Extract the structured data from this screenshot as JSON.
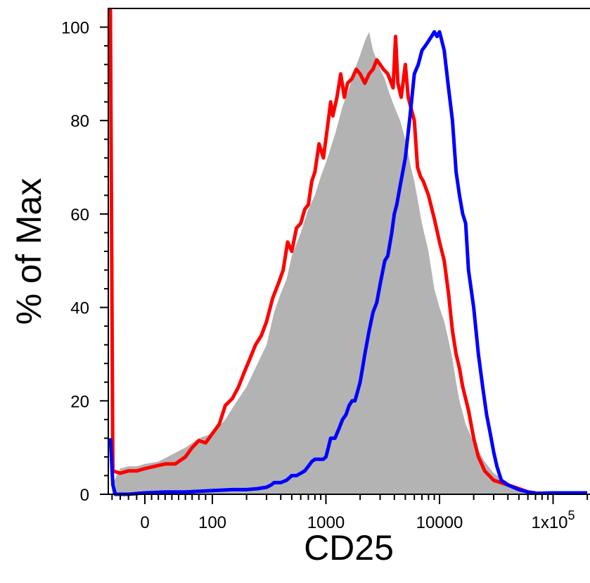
{
  "chart_data": {
    "type": "area",
    "title": "",
    "xlabel": "CD25",
    "ylabel": "% of Max",
    "x_scale": "biexponential",
    "ylim": [
      0,
      104
    ],
    "x_ticks": [
      {
        "value": 0,
        "label": "0"
      },
      {
        "value": 100,
        "label": "100"
      },
      {
        "value": 1000,
        "label": "1000"
      },
      {
        "value": 10000,
        "label": "10000"
      },
      {
        "value": 100000,
        "label": "1x10",
        "superscript": "5"
      }
    ],
    "y_ticks": [
      {
        "value": 0,
        "label": "0"
      },
      {
        "value": 20,
        "label": "20"
      },
      {
        "value": 40,
        "label": "40"
      },
      {
        "value": 60,
        "label": "60"
      },
      {
        "value": 80,
        "label": "80"
      },
      {
        "value": 100,
        "label": "100"
      }
    ],
    "grid": false,
    "legend": "none",
    "series": [
      {
        "style": "filled",
        "color": "#b3b3b3",
        "points": [
          [
            -40,
            2
          ],
          [
            -30,
            5.5
          ],
          [
            -20,
            6
          ],
          [
            -10,
            6
          ],
          [
            0,
            6.5
          ],
          [
            20,
            7
          ],
          [
            40,
            8.5
          ],
          [
            60,
            10
          ],
          [
            80,
            12
          ],
          [
            100,
            13
          ],
          [
            130,
            16
          ],
          [
            160,
            19.5
          ],
          [
            200,
            23
          ],
          [
            250,
            28
          ],
          [
            300,
            32
          ],
          [
            350,
            39
          ],
          [
            400,
            43
          ],
          [
            450,
            46
          ],
          [
            500,
            51
          ],
          [
            600,
            56
          ],
          [
            700,
            61
          ],
          [
            800,
            64
          ],
          [
            900,
            68
          ],
          [
            1000,
            71
          ],
          [
            1200,
            77
          ],
          [
            1400,
            83
          ],
          [
            1600,
            87
          ],
          [
            1800,
            91
          ],
          [
            2000,
            94
          ],
          [
            2200,
            97
          ],
          [
            2400,
            99
          ],
          [
            2600,
            95
          ],
          [
            2800,
            93
          ],
          [
            3000,
            91
          ],
          [
            3300,
            89
          ],
          [
            3600,
            86
          ],
          [
            4000,
            83
          ],
          [
            4500,
            80
          ],
          [
            5000,
            76
          ],
          [
            5600,
            70
          ],
          [
            6000,
            67
          ],
          [
            7000,
            58
          ],
          [
            8000,
            52
          ],
          [
            9000,
            44
          ],
          [
            10000,
            40
          ],
          [
            11000,
            37
          ],
          [
            12000,
            33
          ],
          [
            13000,
            29
          ],
          [
            14000,
            24
          ],
          [
            15000,
            20
          ],
          [
            17000,
            15
          ],
          [
            20000,
            11
          ],
          [
            25000,
            7
          ],
          [
            30000,
            4.5
          ],
          [
            40000,
            2.5
          ],
          [
            50000,
            1.2
          ],
          [
            60000,
            0.5
          ],
          [
            70000,
            0
          ]
        ]
      },
      {
        "style": "line",
        "color": "#ff0000",
        "points": [
          [
            -42,
            104
          ],
          [
            -39,
            5
          ],
          [
            -30,
            4.5
          ],
          [
            -20,
            5
          ],
          [
            -10,
            5
          ],
          [
            0,
            5.5
          ],
          [
            15,
            6
          ],
          [
            30,
            6.5
          ],
          [
            45,
            6.5
          ],
          [
            60,
            8
          ],
          [
            70,
            10
          ],
          [
            80,
            11.5
          ],
          [
            90,
            11
          ],
          [
            100,
            13
          ],
          [
            115,
            15
          ],
          [
            130,
            19
          ],
          [
            150,
            20.5
          ],
          [
            170,
            23
          ],
          [
            190,
            26
          ],
          [
            210,
            28.5
          ],
          [
            240,
            32
          ],
          [
            270,
            34
          ],
          [
            300,
            37
          ],
          [
            340,
            42
          ],
          [
            380,
            45
          ],
          [
            420,
            48
          ],
          [
            460,
            54
          ],
          [
            500,
            52
          ],
          [
            550,
            57
          ],
          [
            600,
            58
          ],
          [
            650,
            61
          ],
          [
            700,
            62
          ],
          [
            750,
            67
          ],
          [
            800,
            69
          ],
          [
            870,
            75
          ],
          [
            950,
            72
          ],
          [
            1050,
            80
          ],
          [
            1100,
            84
          ],
          [
            1150,
            81
          ],
          [
            1250,
            85
          ],
          [
            1350,
            90
          ],
          [
            1450,
            85
          ],
          [
            1550,
            88
          ],
          [
            1700,
            89
          ],
          [
            1850,
            91
          ],
          [
            2000,
            90
          ],
          [
            2200,
            88
          ],
          [
            2400,
            90
          ],
          [
            2600,
            91
          ],
          [
            2800,
            93
          ],
          [
            3000,
            92
          ],
          [
            3200,
            91
          ],
          [
            3500,
            90
          ],
          [
            3900,
            87
          ],
          [
            4100,
            98
          ],
          [
            4300,
            88
          ],
          [
            4600,
            85
          ],
          [
            5000,
            92
          ],
          [
            5300,
            85
          ],
          [
            5700,
            82
          ],
          [
            6000,
            80
          ],
          [
            6400,
            70
          ],
          [
            6800,
            68
          ],
          [
            7200,
            67
          ],
          [
            8000,
            64
          ],
          [
            9000,
            59
          ],
          [
            10000,
            54
          ],
          [
            11000,
            50
          ],
          [
            12000,
            43
          ],
          [
            13000,
            35
          ],
          [
            14000,
            30
          ],
          [
            15000,
            27
          ],
          [
            16000,
            23
          ],
          [
            18000,
            18
          ],
          [
            20000,
            12
          ],
          [
            22000,
            8
          ],
          [
            25000,
            5
          ],
          [
            30000,
            3
          ],
          [
            40000,
            2
          ],
          [
            50000,
            1.2
          ],
          [
            60000,
            0.5
          ],
          [
            70000,
            0.3
          ]
        ]
      },
      {
        "style": "line",
        "color": "#0000ff",
        "points": [
          [
            -42,
            12
          ],
          [
            -39,
            2
          ],
          [
            -36,
            0
          ],
          [
            -20,
            0
          ],
          [
            0,
            0.3
          ],
          [
            30,
            0.5
          ],
          [
            60,
            0.5
          ],
          [
            100,
            0.8
          ],
          [
            150,
            1
          ],
          [
            200,
            1
          ],
          [
            250,
            1.2
          ],
          [
            300,
            1.5
          ],
          [
            330,
            2
          ],
          [
            350,
            2.5
          ],
          [
            400,
            2.5
          ],
          [
            450,
            3
          ],
          [
            500,
            4
          ],
          [
            550,
            4
          ],
          [
            600,
            4.5
          ],
          [
            650,
            5
          ],
          [
            700,
            6
          ],
          [
            750,
            7
          ],
          [
            800,
            7.5
          ],
          [
            900,
            7.5
          ],
          [
            950,
            7.5
          ],
          [
            1000,
            8
          ],
          [
            1050,
            10
          ],
          [
            1100,
            12
          ],
          [
            1200,
            12
          ],
          [
            1300,
            14
          ],
          [
            1400,
            16
          ],
          [
            1500,
            17
          ],
          [
            1600,
            19
          ],
          [
            1700,
            20
          ],
          [
            1800,
            20
          ],
          [
            1900,
            22
          ],
          [
            2000,
            24
          ],
          [
            2100,
            27
          ],
          [
            2200,
            30
          ],
          [
            2400,
            35
          ],
          [
            2600,
            39
          ],
          [
            2800,
            41
          ],
          [
            3000,
            45
          ],
          [
            3300,
            50
          ],
          [
            3500,
            51
          ],
          [
            3800,
            56
          ],
          [
            4000,
            60
          ],
          [
            4200,
            62
          ],
          [
            4500,
            66
          ],
          [
            5000,
            72
          ],
          [
            5500,
            81
          ],
          [
            6000,
            90
          ],
          [
            6500,
            92
          ],
          [
            7000,
            95
          ],
          [
            7500,
            96
          ],
          [
            8000,
            97
          ],
          [
            8500,
            98
          ],
          [
            9000,
            99
          ],
          [
            9500,
            98
          ],
          [
            10000,
            99
          ],
          [
            10500,
            97
          ],
          [
            11000,
            95
          ],
          [
            12000,
            87
          ],
          [
            13000,
            80
          ],
          [
            14000,
            69
          ],
          [
            15000,
            64
          ],
          [
            16000,
            60
          ],
          [
            17000,
            58
          ],
          [
            18000,
            48
          ],
          [
            20000,
            40
          ],
          [
            22000,
            30
          ],
          [
            24000,
            23
          ],
          [
            26000,
            17
          ],
          [
            28000,
            13
          ],
          [
            30000,
            9
          ],
          [
            32000,
            6
          ],
          [
            35000,
            3
          ],
          [
            40000,
            2
          ],
          [
            50000,
            1
          ],
          [
            60000,
            0.5
          ],
          [
            70000,
            0.2
          ],
          [
            100000,
            0.3
          ],
          [
            200000,
            0.3
          ]
        ]
      }
    ]
  }
}
